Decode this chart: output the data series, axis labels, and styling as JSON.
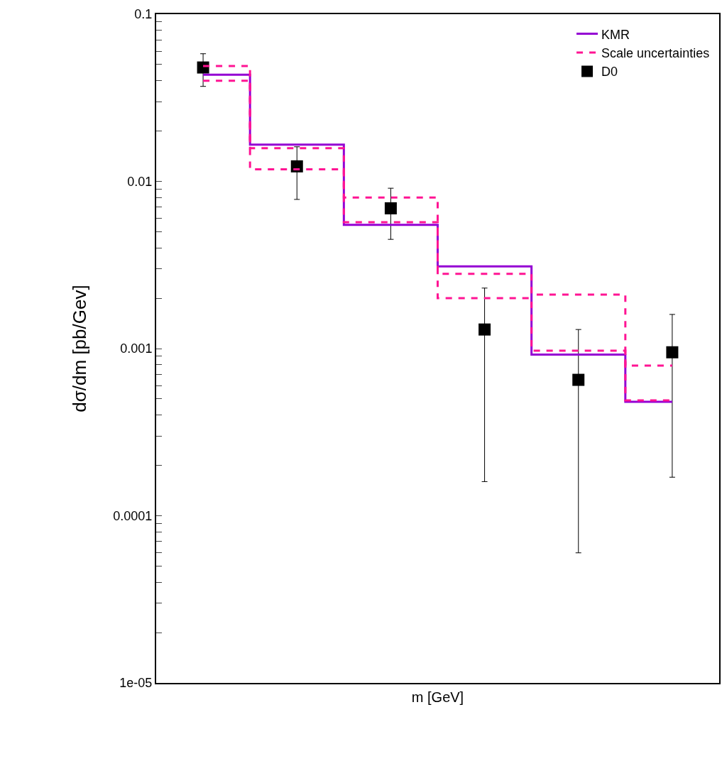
{
  "chart_data": {
    "type": "step",
    "xlabel": "m [GeV]",
    "ylabel": "dσ/dm [pb/Gev]",
    "categories": [
      null,
      null,
      null,
      null,
      null,
      null
    ],
    "log": "y",
    "ylim": [
      1e-05,
      0.1
    ],
    "yticks": [
      {
        "value": 1e-05,
        "label": "1e-05"
      },
      {
        "value": 0.0001,
        "label": "0.0001"
      },
      {
        "value": 0.001,
        "label": "0.001"
      },
      {
        "value": 0.01,
        "label": "0.01"
      },
      {
        "value": 0.1,
        "label": "0.1"
      },
      {
        "value": 2e-05,
        "label": null
      },
      {
        "value": 3e-05,
        "label": null
      },
      {
        "value": 4e-05,
        "label": null
      },
      {
        "value": 5e-05,
        "label": null
      },
      {
        "value": 6e-05,
        "label": null
      },
      {
        "value": 7e-05,
        "label": null
      },
      {
        "value": 8e-05,
        "label": null
      },
      {
        "value": 9e-05,
        "label": null
      },
      {
        "value": 0.0002,
        "label": null
      },
      {
        "value": 0.0003,
        "label": null
      },
      {
        "value": 0.0004,
        "label": null
      },
      {
        "value": 0.0005,
        "label": null
      },
      {
        "value": 0.0006,
        "label": null
      },
      {
        "value": 0.0007,
        "label": null
      },
      {
        "value": 0.0008,
        "label": null
      },
      {
        "value": 0.0009,
        "label": null
      },
      {
        "value": 0.002,
        "label": null
      },
      {
        "value": 0.003,
        "label": null
      },
      {
        "value": 0.004,
        "label": null
      },
      {
        "value": 0.005,
        "label": null
      },
      {
        "value": 0.006,
        "label": null
      },
      {
        "value": 0.007,
        "label": null
      },
      {
        "value": 0.008,
        "label": null
      },
      {
        "value": 0.009,
        "label": null
      },
      {
        "value": 0.02,
        "label": null
      },
      {
        "value": 0.03,
        "label": null
      },
      {
        "value": 0.04,
        "label": null
      },
      {
        "value": 0.05,
        "label": null
      },
      {
        "value": 0.06,
        "label": null
      },
      {
        "value": 0.07,
        "label": null
      },
      {
        "value": 0.08,
        "label": null
      },
      {
        "value": 0.09,
        "label": null
      }
    ],
    "legend": "top right",
    "series": [
      {
        "name": "KMR",
        "color": "#9400d3",
        "line_style": "solid",
        "values": [
          0.0435,
          0.0166,
          0.0055,
          0.0031,
          0.00092,
          0.00048
        ]
      },
      {
        "name": "Scale uncertainties",
        "color": "#ff1493",
        "line_style": "dashed",
        "values": [
          0.049,
          0.0158,
          0.008,
          0.0028,
          0.0021,
          0.00079
        ]
      },
      {
        "color": "#ff1493",
        "line_style": "dashed",
        "values": [
          0.04,
          0.0118,
          0.0057,
          0.002,
          0.00097,
          0.00049
        ]
      },
      {
        "name": "D0",
        "type": "scatter",
        "color": "#000000",
        "marker": "square",
        "values": [
          0.048,
          0.0123,
          0.0069,
          0.0013,
          0.00065,
          0.00095
        ],
        "errors": [
          [
            0.037,
            0.058
          ],
          [
            0.0078,
            0.0161
          ],
          [
            0.0045,
            0.0091
          ],
          [
            0.00016,
            0.0023
          ],
          [
            6e-05,
            0.0013
          ],
          [
            0.00017,
            0.0016
          ]
        ]
      }
    ]
  }
}
